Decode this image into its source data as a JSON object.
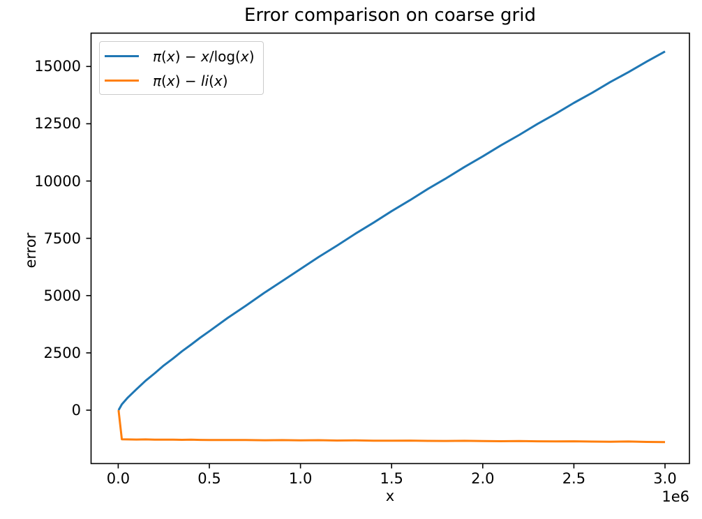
{
  "chart_data": {
    "type": "line",
    "title": "Error comparison on coarse grid",
    "xlabel": "x",
    "ylabel": "error",
    "x_offset_label": "1e6",
    "grid": false,
    "legend_position": "upper left",
    "xlim": [
      -149000,
      3134000
    ],
    "ylim": [
      -2330,
      16455
    ],
    "x_ticks": {
      "values": [
        0,
        500000,
        1000000,
        1500000,
        2000000,
        2500000,
        3000000
      ],
      "labels": [
        "0.0",
        "0.5",
        "1.0",
        "1.5",
        "2.0",
        "2.5",
        "3.0"
      ]
    },
    "y_ticks": {
      "values": [
        0,
        2500,
        5000,
        7500,
        10000,
        12500,
        15000
      ],
      "labels": [
        "0",
        "2500",
        "5000",
        "7500",
        "10000",
        "12500",
        "15000"
      ]
    },
    "x": [
      2000,
      20000,
      50000,
      100000,
      150000,
      200000,
      250000,
      300000,
      350000,
      400000,
      450000,
      500000,
      600000,
      700000,
      800000,
      900000,
      1000000,
      1100000,
      1200000,
      1300000,
      1400000,
      1500000,
      1600000,
      1700000,
      1800000,
      1900000,
      2000000,
      2100000,
      2200000,
      2300000,
      2400000,
      2500000,
      2600000,
      2700000,
      2800000,
      2900000,
      3000000
    ],
    "series": [
      {
        "id": "pi-minus-x-over-logx",
        "name": "π(x) − x/log(x)",
        "color": "#1f77b4",
        "y": [
          0,
          255,
          530,
          910,
          1285,
          1610,
          1950,
          2250,
          2570,
          2860,
          3165,
          3445,
          4020,
          4560,
          5115,
          5635,
          6160,
          6685,
          7180,
          7695,
          8180,
          8685,
          9160,
          9660,
          10125,
          10615,
          11075,
          11560,
          12010,
          12490,
          12935,
          13410,
          13850,
          14320,
          14755,
          15215,
          15655
        ]
      },
      {
        "id": "pi-minus-li",
        "name": "π(x) − li(x)",
        "color": "#ff7f0e",
        "y": [
          0,
          -1272,
          -1278,
          -1282,
          -1276,
          -1285,
          -1290,
          -1288,
          -1295,
          -1290,
          -1298,
          -1302,
          -1305,
          -1300,
          -1312,
          -1308,
          -1318,
          -1310,
          -1325,
          -1320,
          -1330,
          -1335,
          -1328,
          -1340,
          -1345,
          -1338,
          -1350,
          -1355,
          -1348,
          -1360,
          -1365,
          -1358,
          -1370,
          -1378,
          -1368,
          -1385,
          -1395
        ]
      }
    ]
  },
  "legend": {
    "entries": [
      {
        "id": "pi-minus-x-over-logx",
        "color": "#1f77b4",
        "label": "π(x) − x/log(x)",
        "parts": [
          {
            "t": "π",
            "i": true
          },
          {
            "t": "(",
            "i": false
          },
          {
            "t": "x",
            "i": true
          },
          {
            "t": ") − ",
            "i": false
          },
          {
            "t": "x",
            "i": true
          },
          {
            "t": "/log(",
            "i": false
          },
          {
            "t": "x",
            "i": true
          },
          {
            "t": ")",
            "i": false
          }
        ]
      },
      {
        "id": "pi-minus-li",
        "color": "#ff7f0e",
        "label": "π(x) − li(x)",
        "parts": [
          {
            "t": "π",
            "i": true
          },
          {
            "t": "(",
            "i": false
          },
          {
            "t": "x",
            "i": true
          },
          {
            "t": ") − ",
            "i": false
          },
          {
            "t": "li",
            "i": true
          },
          {
            "t": "(",
            "i": false
          },
          {
            "t": "x",
            "i": true
          },
          {
            "t": ")",
            "i": false
          }
        ]
      }
    ]
  },
  "colors": {
    "foreground": "#000000",
    "background": "#ffffff",
    "legend_border": "#cbcbcb"
  }
}
